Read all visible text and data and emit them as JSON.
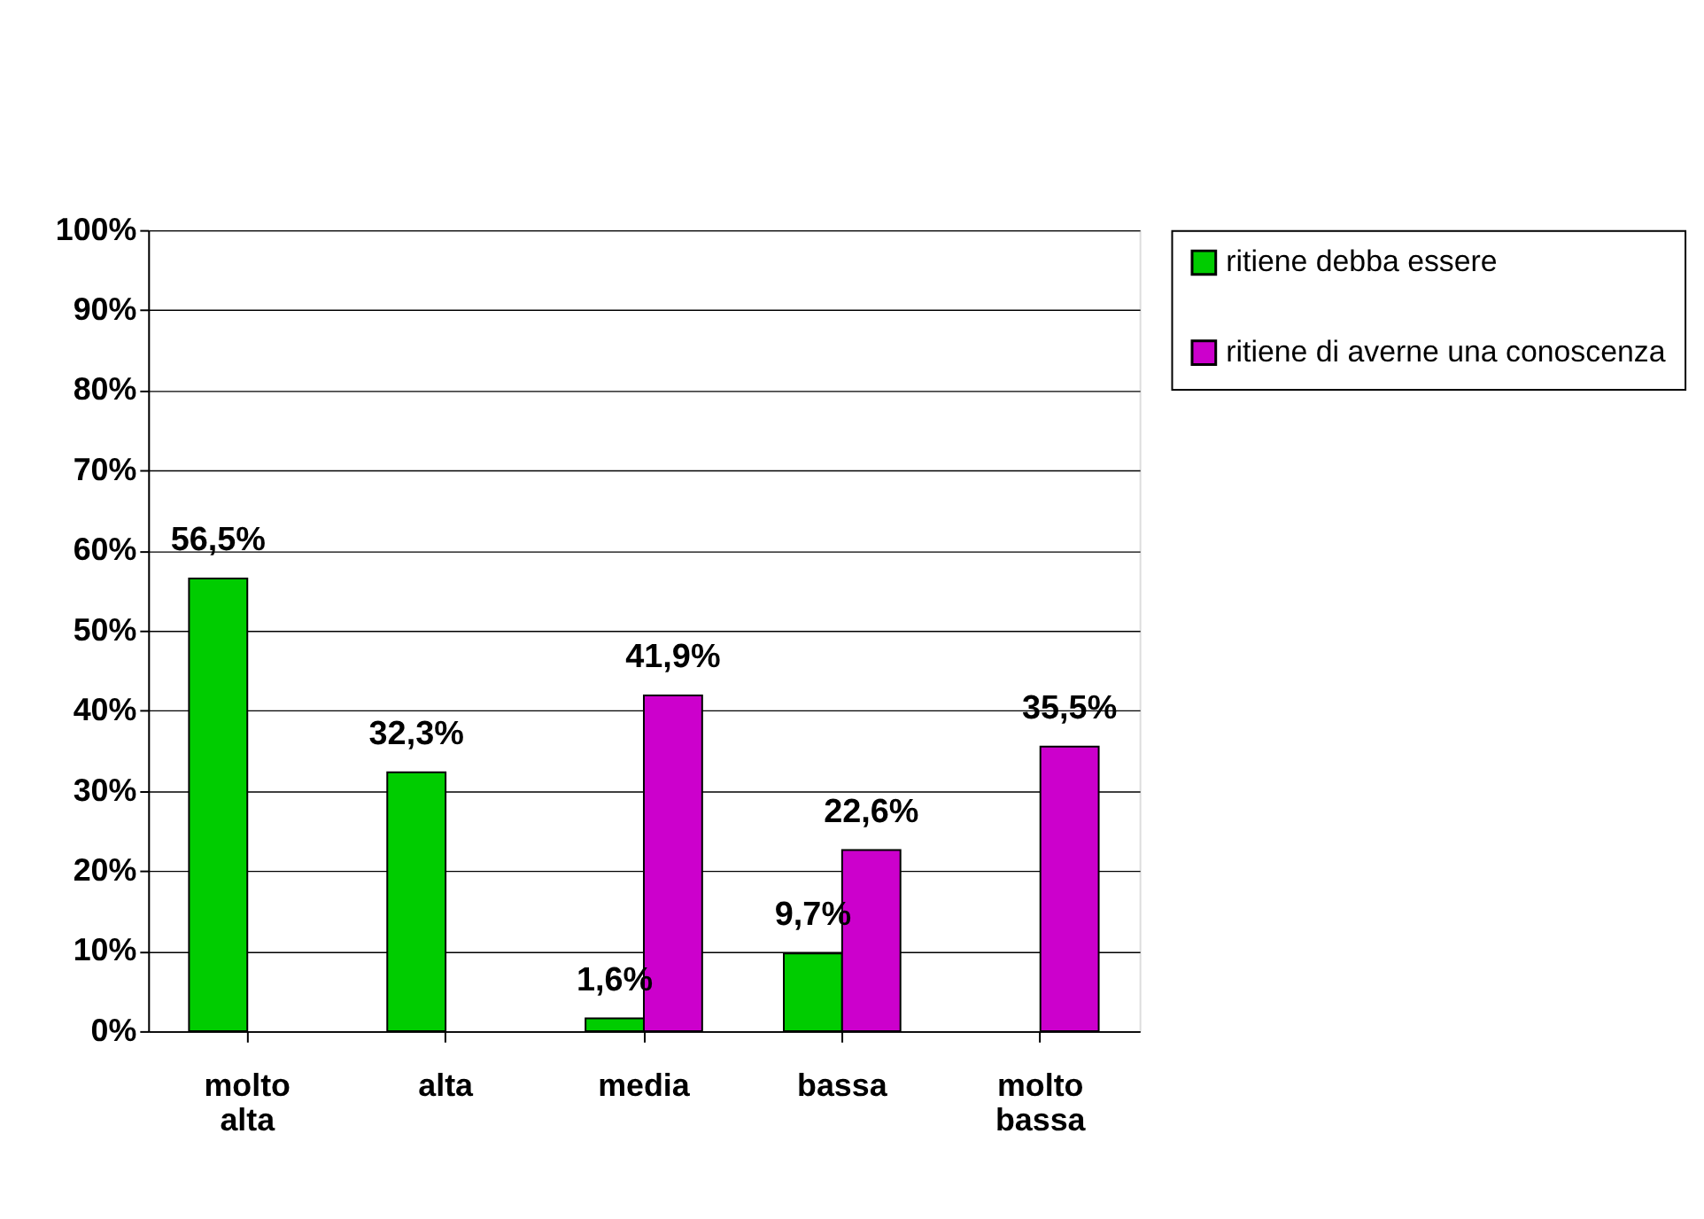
{
  "chart_data": {
    "type": "bar",
    "categories": [
      "molto alta",
      "alta",
      "media",
      "bassa",
      "molto bassa"
    ],
    "series": [
      {
        "name": "ritiene debba essere",
        "color": "#00cc00",
        "values": [
          56.5,
          32.3,
          1.6,
          9.7,
          null
        ],
        "value_labels": [
          "56,5%",
          "32,3%",
          "1,6%",
          "9,7%",
          null
        ]
      },
      {
        "name": "ritiene di averne una conoscenza",
        "color": "#cc00cc",
        "values": [
          null,
          null,
          41.9,
          22.6,
          35.5
        ],
        "value_labels": [
          null,
          null,
          "41,9%",
          "22,6%",
          "35,5%"
        ]
      }
    ],
    "ylim": [
      0,
      100
    ],
    "yticks": [
      {
        "value": 0,
        "label": "0%"
      },
      {
        "value": 10,
        "label": "10%"
      },
      {
        "value": 20,
        "label": "20%"
      },
      {
        "value": 30,
        "label": "30%"
      },
      {
        "value": 40,
        "label": "40%"
      },
      {
        "value": 50,
        "label": "50%"
      },
      {
        "value": 60,
        "label": "60%"
      },
      {
        "value": 70,
        "label": "70%"
      },
      {
        "value": 80,
        "label": "80%"
      },
      {
        "value": 90,
        "label": "90%"
      },
      {
        "value": 100,
        "label": "100%"
      }
    ],
    "grid": "y",
    "legend": "right"
  }
}
